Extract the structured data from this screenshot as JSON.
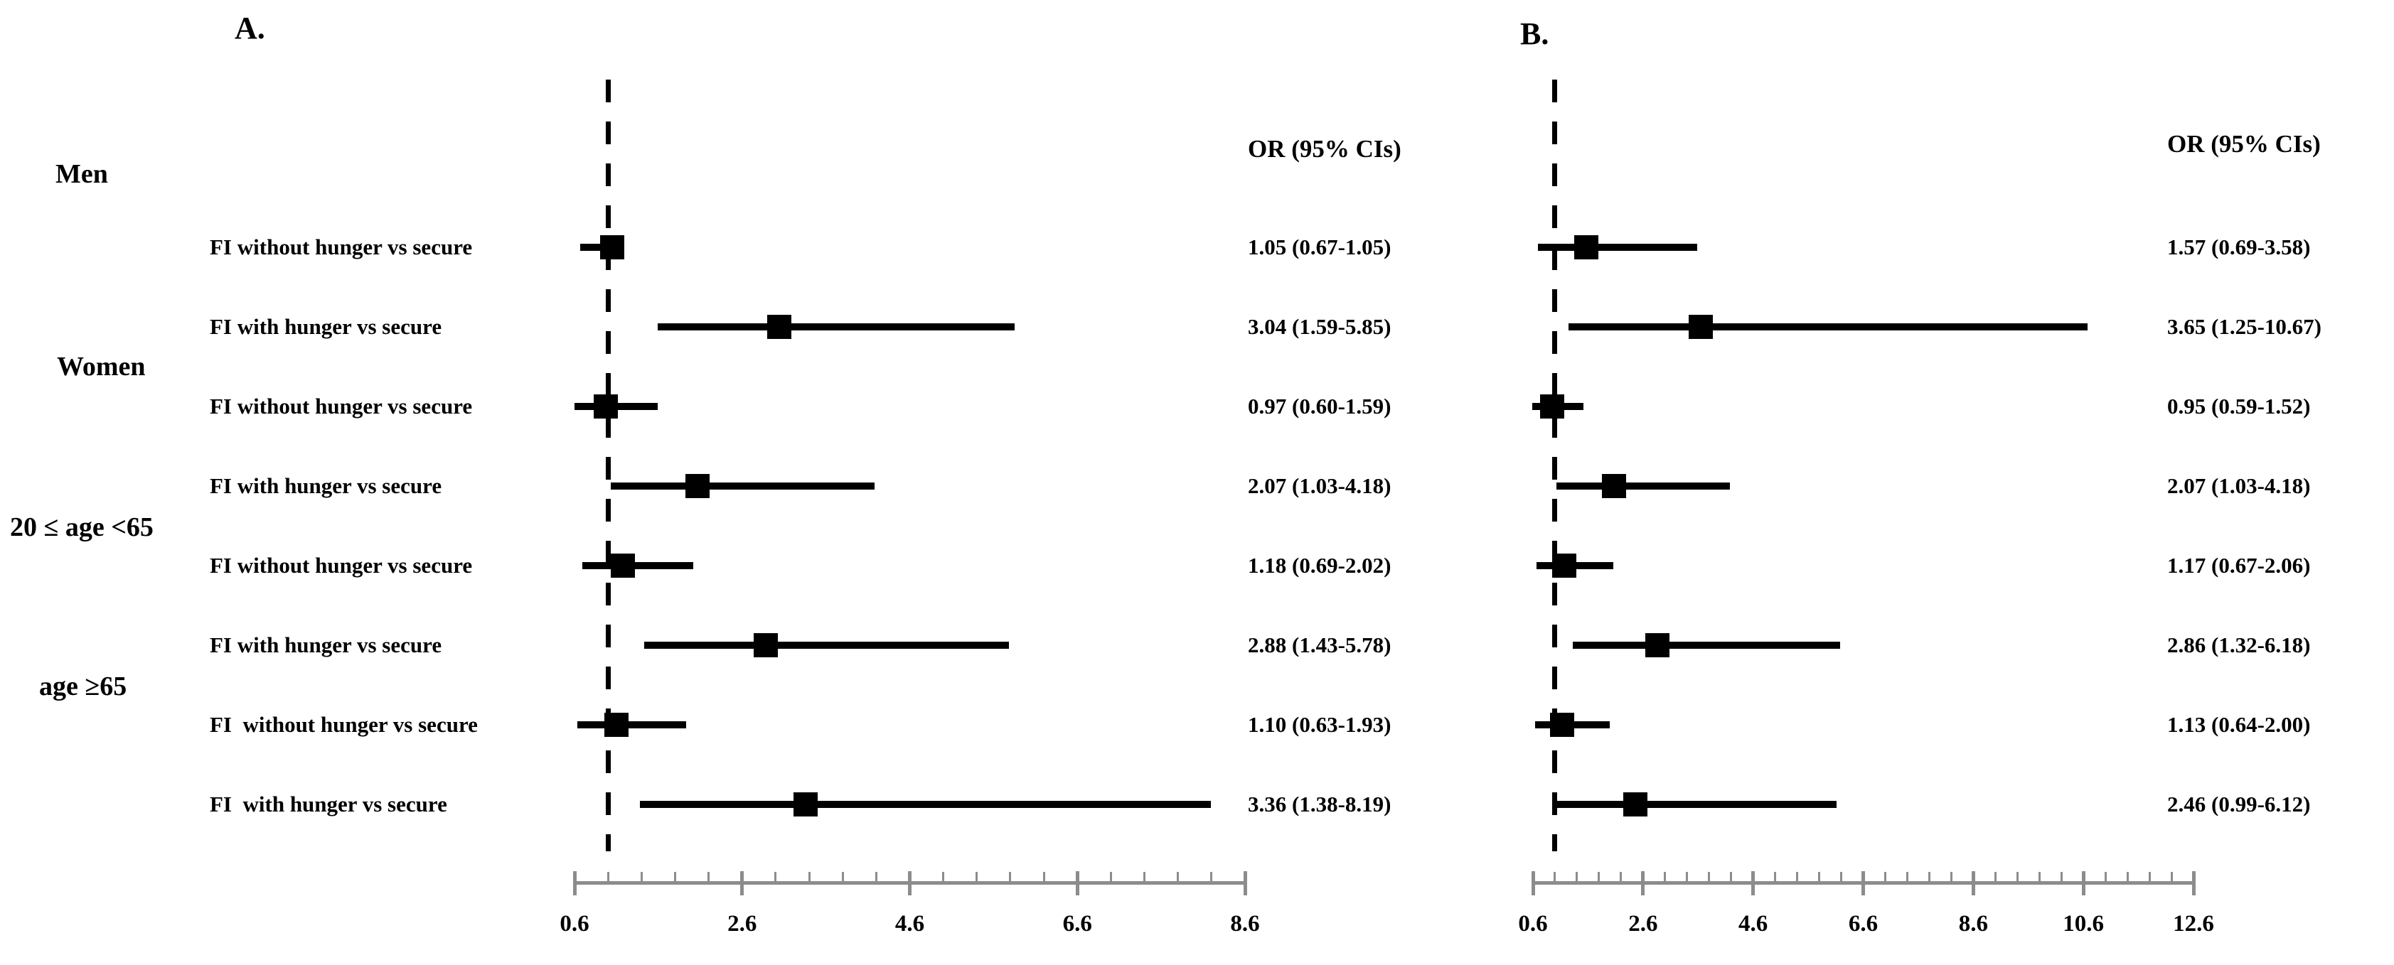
{
  "left_column": {
    "groups": [
      {
        "label": "Men"
      },
      {
        "label": "Women"
      },
      {
        "label": "20 ≤ age <65"
      },
      {
        "label": "age ≥65"
      }
    ],
    "row_labels": [
      "FI without hunger vs secure",
      "FI with hunger vs secure",
      "FI without hunger vs secure",
      "FI with hunger vs secure",
      "FI without hunger vs secure",
      "FI with hunger vs secure",
      "FI  without hunger vs secure",
      "FI  with hunger vs secure"
    ]
  },
  "chart_data": [
    {
      "type": "scatter",
      "subtype": "forest-plot",
      "panel_label": "A.",
      "or_header": "OR (95% CIs)",
      "reference_line_x": 1.0,
      "x_axis": {
        "min": 0.6,
        "max": 8.6,
        "minor_step": 0.4,
        "major_step": 2.0,
        "tick_labels": [
          "0.6",
          "2.6",
          "4.6",
          "6.6",
          "8.6"
        ]
      },
      "rows": [
        {
          "group": "Men",
          "label": "FI without hunger vs secure",
          "or": 1.05,
          "ci_low": 0.67,
          "ci_high": 1.05,
          "or_text": "1.05 (0.67-1.05)"
        },
        {
          "group": "Men",
          "label": "FI with hunger vs secure",
          "or": 3.04,
          "ci_low": 1.59,
          "ci_high": 5.85,
          "or_text": "3.04 (1.59-5.85)"
        },
        {
          "group": "Women",
          "label": "FI without hunger vs secure",
          "or": 0.97,
          "ci_low": 0.6,
          "ci_high": 1.59,
          "or_text": "0.97 (0.60-1.59)"
        },
        {
          "group": "Women",
          "label": "FI with hunger vs secure",
          "or": 2.07,
          "ci_low": 1.03,
          "ci_high": 4.18,
          "or_text": "2.07 (1.03-4.18)"
        },
        {
          "group": "20 ≤ age <65",
          "label": "FI without hunger vs secure",
          "or": 1.18,
          "ci_low": 0.69,
          "ci_high": 2.02,
          "or_text": "1.18 (0.69-2.02)"
        },
        {
          "group": "20 ≤ age <65",
          "label": "FI with hunger vs secure",
          "or": 2.88,
          "ci_low": 1.43,
          "ci_high": 5.78,
          "or_text": "2.88 (1.43-5.78)"
        },
        {
          "group": "age ≥65",
          "label": "FI  without hunger vs secure",
          "or": 1.1,
          "ci_low": 0.63,
          "ci_high": 1.93,
          "or_text": "1.10 (0.63-1.93)"
        },
        {
          "group": "age ≥65",
          "label": "FI  with hunger vs secure",
          "or": 3.36,
          "ci_low": 1.38,
          "ci_high": 8.19,
          "or_text": "3.36 (1.38-8.19)"
        }
      ]
    },
    {
      "type": "scatter",
      "subtype": "forest-plot",
      "panel_label": "B.",
      "or_header": "OR (95% CIs)",
      "reference_line_x": 1.0,
      "x_axis": {
        "min": 0.6,
        "max": 12.6,
        "minor_step": 0.4,
        "major_step": 2.0,
        "tick_labels": [
          "0.6",
          "2.6",
          "4.6",
          "6.6",
          "8.6",
          "10.6",
          "12.6"
        ]
      },
      "rows": [
        {
          "group": "Men",
          "label": "FI without hunger vs secure",
          "or": 1.57,
          "ci_low": 0.69,
          "ci_high": 3.58,
          "or_text": "1.57 (0.69-3.58)"
        },
        {
          "group": "Men",
          "label": "FI with hunger vs secure",
          "or": 3.65,
          "ci_low": 1.25,
          "ci_high": 10.67,
          "or_text": "3.65 (1.25-10.67)"
        },
        {
          "group": "Women",
          "label": "FI without hunger vs secure",
          "or": 0.95,
          "ci_low": 0.59,
          "ci_high": 1.52,
          "or_text": "0.95 (0.59-1.52)"
        },
        {
          "group": "Women",
          "label": "FI with hunger vs secure",
          "or": 2.07,
          "ci_low": 1.03,
          "ci_high": 4.18,
          "or_text": "2.07 (1.03-4.18)"
        },
        {
          "group": "20 ≤ age <65",
          "label": "FI without hunger vs secure",
          "or": 1.17,
          "ci_low": 0.67,
          "ci_high": 2.06,
          "or_text": "1.17 (0.67-2.06)"
        },
        {
          "group": "20 ≤ age <65",
          "label": "FI with hunger vs secure",
          "or": 2.86,
          "ci_low": 1.32,
          "ci_high": 6.18,
          "or_text": "2.86 (1.32-6.18)"
        },
        {
          "group": "age ≥65",
          "label": "FI  without hunger vs secure",
          "or": 1.13,
          "ci_low": 0.64,
          "ci_high": 2.0,
          "or_text": "1.13 (0.64-2.00)"
        },
        {
          "group": "age ≥65",
          "label": "FI  with hunger vs secure",
          "or": 2.46,
          "ci_low": 0.99,
          "ci_high": 6.12,
          "or_text": "2.46 (0.99-6.12)"
        }
      ]
    }
  ],
  "colors": {
    "marker": "#000000",
    "axis": "#8c8c8c",
    "text": "#000000",
    "background": "#ffffff"
  }
}
